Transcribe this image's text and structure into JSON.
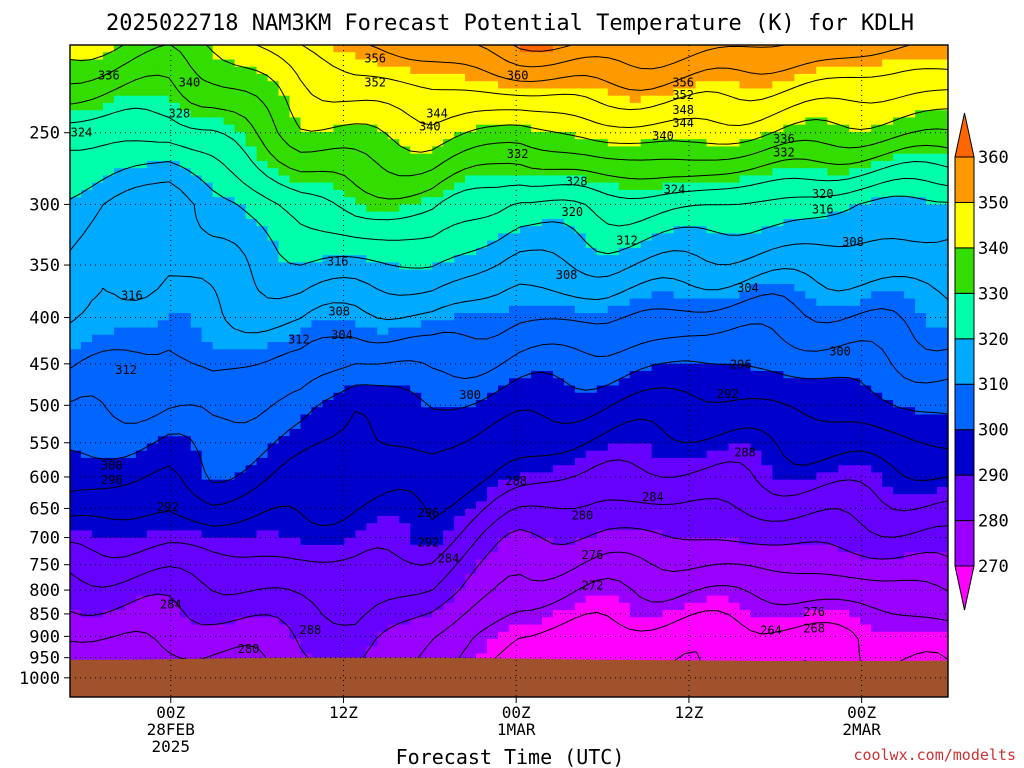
{
  "title": "2025022718 NAM3KM Forecast Potential Temperature (K) for KDLH",
  "xlabel": "Forecast Time (UTC)",
  "watermark": "coolwx.com/modelts",
  "colors": {
    "bands": [
      "#ff00ff",
      "#9900ff",
      "#6600ff",
      "#0000cc",
      "#0066ff",
      "#00aaff",
      "#00ffaa",
      "#33dd00",
      "#ffff00",
      "#ff9900",
      "#ff6600"
    ],
    "ground": "#a0522d",
    "watermark": "#cc3333"
  },
  "chart_data": {
    "type": "heatmap",
    "title": "2025022718 NAM3KM Forecast Potential Temperature (K) for KDLH",
    "xlabel": "Forecast Time (UTC)",
    "ylabel": "",
    "y_scale": "log",
    "y_inverted": true,
    "x_range_hours": [
      -7,
      54
    ],
    "y_range_hPa": [
      200,
      1050
    ],
    "x_ticks": [
      {
        "h": 0,
        "lines": [
          "00Z",
          "28FEB",
          "2025"
        ]
      },
      {
        "h": 12,
        "lines": [
          "12Z"
        ]
      },
      {
        "h": 24,
        "lines": [
          "00Z",
          "1MAR"
        ]
      },
      {
        "h": 36,
        "lines": [
          "12Z"
        ]
      },
      {
        "h": 48,
        "lines": [
          "00Z",
          "2MAR"
        ]
      }
    ],
    "y_ticks": [
      250,
      300,
      350,
      400,
      450,
      500,
      550,
      600,
      650,
      700,
      750,
      800,
      850,
      900,
      950,
      1000
    ],
    "colorbar": {
      "levels": [
        260,
        270,
        280,
        290,
        300,
        310,
        320,
        330,
        340,
        350,
        360,
        370
      ],
      "labels": [
        "270",
        "280",
        "290",
        "300",
        "310",
        "320",
        "330",
        "340",
        "350",
        "360"
      ]
    },
    "grid": true,
    "surface_pressure_hPa": [
      955,
      955,
      953,
      951,
      950,
      950,
      950,
      951,
      953,
      955,
      956,
      957,
      958,
      958,
      958,
      957
    ],
    "theta_profile_levels_hPa": [
      200,
      250,
      300,
      400,
      500,
      600,
      700,
      800,
      900,
      1000
    ],
    "theta_profiles": [
      {
        "h": -7,
        "theta": [
          342,
          326,
          318,
          312,
          305,
          298,
          290,
          282,
          276,
          272
        ]
      },
      {
        "h": 0,
        "theta": [
          337,
          325,
          312,
          310,
          304,
          296,
          289,
          282,
          277,
          273
        ]
      },
      {
        "h": 3,
        "theta": [
          340,
          328,
          318,
          312,
          306,
          300,
          290,
          283,
          277,
          274
        ]
      },
      {
        "h": 9,
        "theta": [
          348,
          338,
          326,
          313,
          302,
          295,
          290,
          285,
          280,
          276
        ]
      },
      {
        "h": 13,
        "theta": [
          352,
          340,
          330,
          310,
          296,
          293,
          290,
          286,
          283,
          281
        ]
      },
      {
        "h": 18,
        "theta": [
          354,
          342,
          330,
          312,
          300,
          295,
          290,
          284,
          276,
          272
        ]
      },
      {
        "h": 24,
        "theta": [
          360,
          338,
          322,
          308,
          298,
          290,
          280,
          274,
          268,
          266
        ]
      },
      {
        "h": 30,
        "theta": [
          360,
          342,
          326,
          309,
          296,
          287,
          279,
          272,
          266,
          264
        ]
      },
      {
        "h": 36,
        "theta": [
          358,
          343,
          325,
          306,
          294,
          287,
          280,
          272,
          266,
          264
        ]
      },
      {
        "h": 42,
        "theta": [
          356,
          340,
          323,
          306,
          296,
          289,
          281,
          273,
          266,
          264
        ]
      },
      {
        "h": 48,
        "theta": [
          354,
          338,
          320,
          308,
          298,
          290,
          282,
          274,
          268,
          266
        ]
      },
      {
        "h": 54,
        "theta": [
          352,
          336,
          318,
          310,
          302,
          292,
          284,
          276,
          270,
          268
        ]
      }
    ],
    "contour_labels": [
      {
        "h": -4.3,
        "p": 216,
        "v": "336"
      },
      {
        "h": 1.3,
        "p": 220,
        "v": "340"
      },
      {
        "h": 0.6,
        "p": 238,
        "v": "328"
      },
      {
        "h": -6.2,
        "p": 250,
        "v": "324"
      },
      {
        "h": 14.2,
        "p": 207,
        "v": "356"
      },
      {
        "h": 14.2,
        "p": 220,
        "v": "352"
      },
      {
        "h": 24.1,
        "p": 216,
        "v": "360"
      },
      {
        "h": 35.6,
        "p": 220,
        "v": "356"
      },
      {
        "h": 35.6,
        "p": 227,
        "v": "352"
      },
      {
        "h": 35.6,
        "p": 236,
        "v": "348"
      },
      {
        "h": 35.6,
        "p": 244,
        "v": "344"
      },
      {
        "h": 34.2,
        "p": 252,
        "v": "340"
      },
      {
        "h": 18.5,
        "p": 238,
        "v": "344"
      },
      {
        "h": 18.0,
        "p": 246,
        "v": "340"
      },
      {
        "h": 42.6,
        "p": 254,
        "v": "336"
      },
      {
        "h": 42.6,
        "p": 263,
        "v": "332"
      },
      {
        "h": 24.1,
        "p": 264,
        "v": "332"
      },
      {
        "h": 28.2,
        "p": 283,
        "v": "328"
      },
      {
        "h": 35.0,
        "p": 289,
        "v": "324"
      },
      {
        "h": 45.3,
        "p": 292,
        "v": "320"
      },
      {
        "h": 27.9,
        "p": 306,
        "v": "320"
      },
      {
        "h": 45.3,
        "p": 304,
        "v": "316"
      },
      {
        "h": 11.6,
        "p": 347,
        "v": "316"
      },
      {
        "h": -2.7,
        "p": 378,
        "v": "316"
      },
      {
        "h": 31.7,
        "p": 329,
        "v": "312"
      },
      {
        "h": 47.4,
        "p": 330,
        "v": "308"
      },
      {
        "h": 27.5,
        "p": 359,
        "v": "308"
      },
      {
        "h": 11.7,
        "p": 394,
        "v": "308"
      },
      {
        "h": 11.9,
        "p": 418,
        "v": "304"
      },
      {
        "h": 8.9,
        "p": 423,
        "v": "312"
      },
      {
        "h": 40.1,
        "p": 371,
        "v": "304"
      },
      {
        "h": -3.1,
        "p": 457,
        "v": "312"
      },
      {
        "h": 46.5,
        "p": 436,
        "v": "300"
      },
      {
        "h": 39.6,
        "p": 451,
        "v": "296"
      },
      {
        "h": 20.8,
        "p": 487,
        "v": "300"
      },
      {
        "h": 38.7,
        "p": 486,
        "v": "292"
      },
      {
        "h": -4.1,
        "p": 583,
        "v": "300"
      },
      {
        "h": -4.1,
        "p": 605,
        "v": "296"
      },
      {
        "h": -0.2,
        "p": 648,
        "v": "292"
      },
      {
        "h": 39.9,
        "p": 564,
        "v": "288"
      },
      {
        "h": 24.0,
        "p": 606,
        "v": "288"
      },
      {
        "h": 33.5,
        "p": 631,
        "v": "284"
      },
      {
        "h": 28.6,
        "p": 662,
        "v": "280"
      },
      {
        "h": 17.9,
        "p": 658,
        "v": "296"
      },
      {
        "h": 17.9,
        "p": 709,
        "v": "292"
      },
      {
        "h": 19.3,
        "p": 738,
        "v": "284"
      },
      {
        "h": 29.3,
        "p": 732,
        "v": "276"
      },
      {
        "h": 29.3,
        "p": 791,
        "v": "272"
      },
      {
        "h": 0.0,
        "p": 830,
        "v": "284"
      },
      {
        "h": 9.7,
        "p": 886,
        "v": "288"
      },
      {
        "h": 5.4,
        "p": 929,
        "v": "280"
      },
      {
        "h": 44.7,
        "p": 846,
        "v": "276"
      },
      {
        "h": 44.7,
        "p": 882,
        "v": "268"
      },
      {
        "h": 41.7,
        "p": 887,
        "v": "264"
      }
    ]
  }
}
